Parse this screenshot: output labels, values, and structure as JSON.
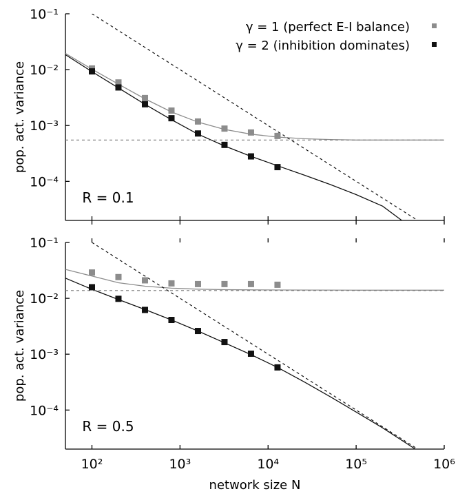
{
  "chart_data": [
    {
      "type": "scatter",
      "panel_label": "R = 0.1",
      "xlabel": "",
      "ylabel": "pop. act. variance",
      "x_scale": "log",
      "y_scale": "log",
      "xlim": [
        50,
        1000000
      ],
      "ylim": [
        2e-05,
        0.1
      ],
      "y_ticks": [
        {
          "value": 0.1,
          "label": "10⁻¹"
        },
        {
          "value": 0.01,
          "label": "10⁻²"
        },
        {
          "value": 0.001,
          "label": "10⁻³"
        },
        {
          "value": 0.0001,
          "label": "10⁻⁴"
        }
      ],
      "series": [
        {
          "name": "γ = 1 (perfect E-I balance)",
          "color": "#8c8c8c",
          "x": [
            100,
            200,
            400,
            800,
            1600,
            3200,
            6400,
            12800
          ],
          "y": [
            0.0105,
            0.0059,
            0.0031,
            0.00185,
            0.00118,
            0.00088,
            0.00075,
            0.00065
          ]
        },
        {
          "name": "γ = 2 (inhibition dominates)",
          "color": "#111111",
          "x": [
            100,
            200,
            400,
            800,
            1600,
            3200,
            6400,
            12800
          ],
          "y": [
            0.0093,
            0.0048,
            0.0024,
            0.00135,
            0.00072,
            0.00045,
            0.00028,
            0.00018
          ]
        }
      ],
      "lines": [
        {
          "style": "solid",
          "color": "#8c8c8c",
          "x": [
            50,
            100,
            200,
            400,
            800,
            1600,
            3200,
            6400,
            12800,
            25600,
            51200,
            100000,
            1000000
          ],
          "y": [
            0.0195,
            0.0102,
            0.0055,
            0.003,
            0.00175,
            0.00115,
            0.00085,
            0.0007,
            0.00062,
            0.00058,
            0.00056,
            0.00055,
            0.00055
          ]
        },
        {
          "style": "solid",
          "color": "#111111",
          "x": [
            50,
            100,
            200,
            400,
            800,
            1600,
            3200,
            6400,
            12800,
            25600,
            51200,
            100000,
            200000,
            330000
          ],
          "y": [
            0.0185,
            0.0092,
            0.0047,
            0.0024,
            0.00127,
            0.0007,
            0.00043,
            0.00028,
            0.00019,
            0.00013,
            8.75e-05,
            5.8e-05,
            3.6e-05,
            2e-05
          ]
        },
        {
          "style": "dashed",
          "color": "#111111",
          "x": [
            100,
            470000
          ],
          "y": [
            0.1,
            2.13e-05
          ]
        },
        {
          "style": "dashed",
          "color": "#777777",
          "x": [
            50,
            1000000
          ],
          "y": [
            0.00055,
            0.00055
          ]
        }
      ]
    },
    {
      "type": "scatter",
      "panel_label": "R = 0.5",
      "xlabel": "network size N",
      "ylabel": "pop. act. variance",
      "x_scale": "log",
      "y_scale": "log",
      "xlim": [
        50,
        1000000
      ],
      "ylim": [
        2e-05,
        0.1
      ],
      "y_ticks": [
        {
          "value": 0.1,
          "label": "10⁻¹"
        },
        {
          "value": 0.01,
          "label": "10⁻²"
        },
        {
          "value": 0.001,
          "label": "10⁻³"
        },
        {
          "value": 0.0001,
          "label": "10⁻⁴"
        }
      ],
      "x_ticks": [
        {
          "value": 100,
          "label": "10²"
        },
        {
          "value": 1000,
          "label": "10³"
        },
        {
          "value": 10000,
          "label": "10⁴"
        },
        {
          "value": 100000,
          "label": "10⁵"
        },
        {
          "value": 1000000,
          "label": "10⁶"
        }
      ],
      "series": [
        {
          "name": "γ = 1 (perfect E-I balance)",
          "color": "#8c8c8c",
          "x": [
            100,
            200,
            400,
            800,
            1600,
            3200,
            6400,
            12800
          ],
          "y": [
            0.029,
            0.024,
            0.021,
            0.0185,
            0.018,
            0.018,
            0.018,
            0.0175
          ]
        },
        {
          "name": "γ = 2 (inhibition dominates)",
          "color": "#111111",
          "x": [
            100,
            200,
            400,
            800,
            1600,
            3200,
            6400,
            12800
          ],
          "y": [
            0.0158,
            0.0098,
            0.0062,
            0.0041,
            0.0026,
            0.00165,
            0.00102,
            0.00058
          ]
        }
      ],
      "lines": [
        {
          "style": "solid",
          "color": "#8c8c8c",
          "x": [
            50,
            100,
            200,
            400,
            800,
            1600,
            3200,
            6400,
            12800,
            100000,
            1000000
          ],
          "y": [
            0.033,
            0.025,
            0.019,
            0.0165,
            0.0152,
            0.0146,
            0.0143,
            0.0142,
            0.0141,
            0.014,
            0.014
          ]
        },
        {
          "style": "solid",
          "color": "#111111",
          "x": [
            50,
            100,
            200,
            400,
            800,
            1600,
            3200,
            6400,
            12800,
            25600,
            51200,
            100000,
            200000,
            470000
          ],
          "y": [
            0.023,
            0.0145,
            0.0095,
            0.0063,
            0.0041,
            0.0026,
            0.0016,
            0.00098,
            0.00058,
            0.00032,
            0.000172,
            9.2e-05,
            4.8e-05,
            2e-05
          ]
        },
        {
          "style": "dashed",
          "color": "#111111",
          "x": [
            100,
            470000
          ],
          "y": [
            0.1,
            2.13e-05
          ]
        },
        {
          "style": "dashed",
          "color": "#777777",
          "x": [
            50,
            1000000
          ],
          "y": [
            0.0138,
            0.0138
          ]
        }
      ]
    }
  ],
  "legend": [
    {
      "label": "γ = 1 (perfect E-I balance)",
      "color": "#8c8c8c"
    },
    {
      "label": "γ = 2 (inhibition dominates)",
      "color": "#111111"
    }
  ],
  "legend_placement": "top-right"
}
